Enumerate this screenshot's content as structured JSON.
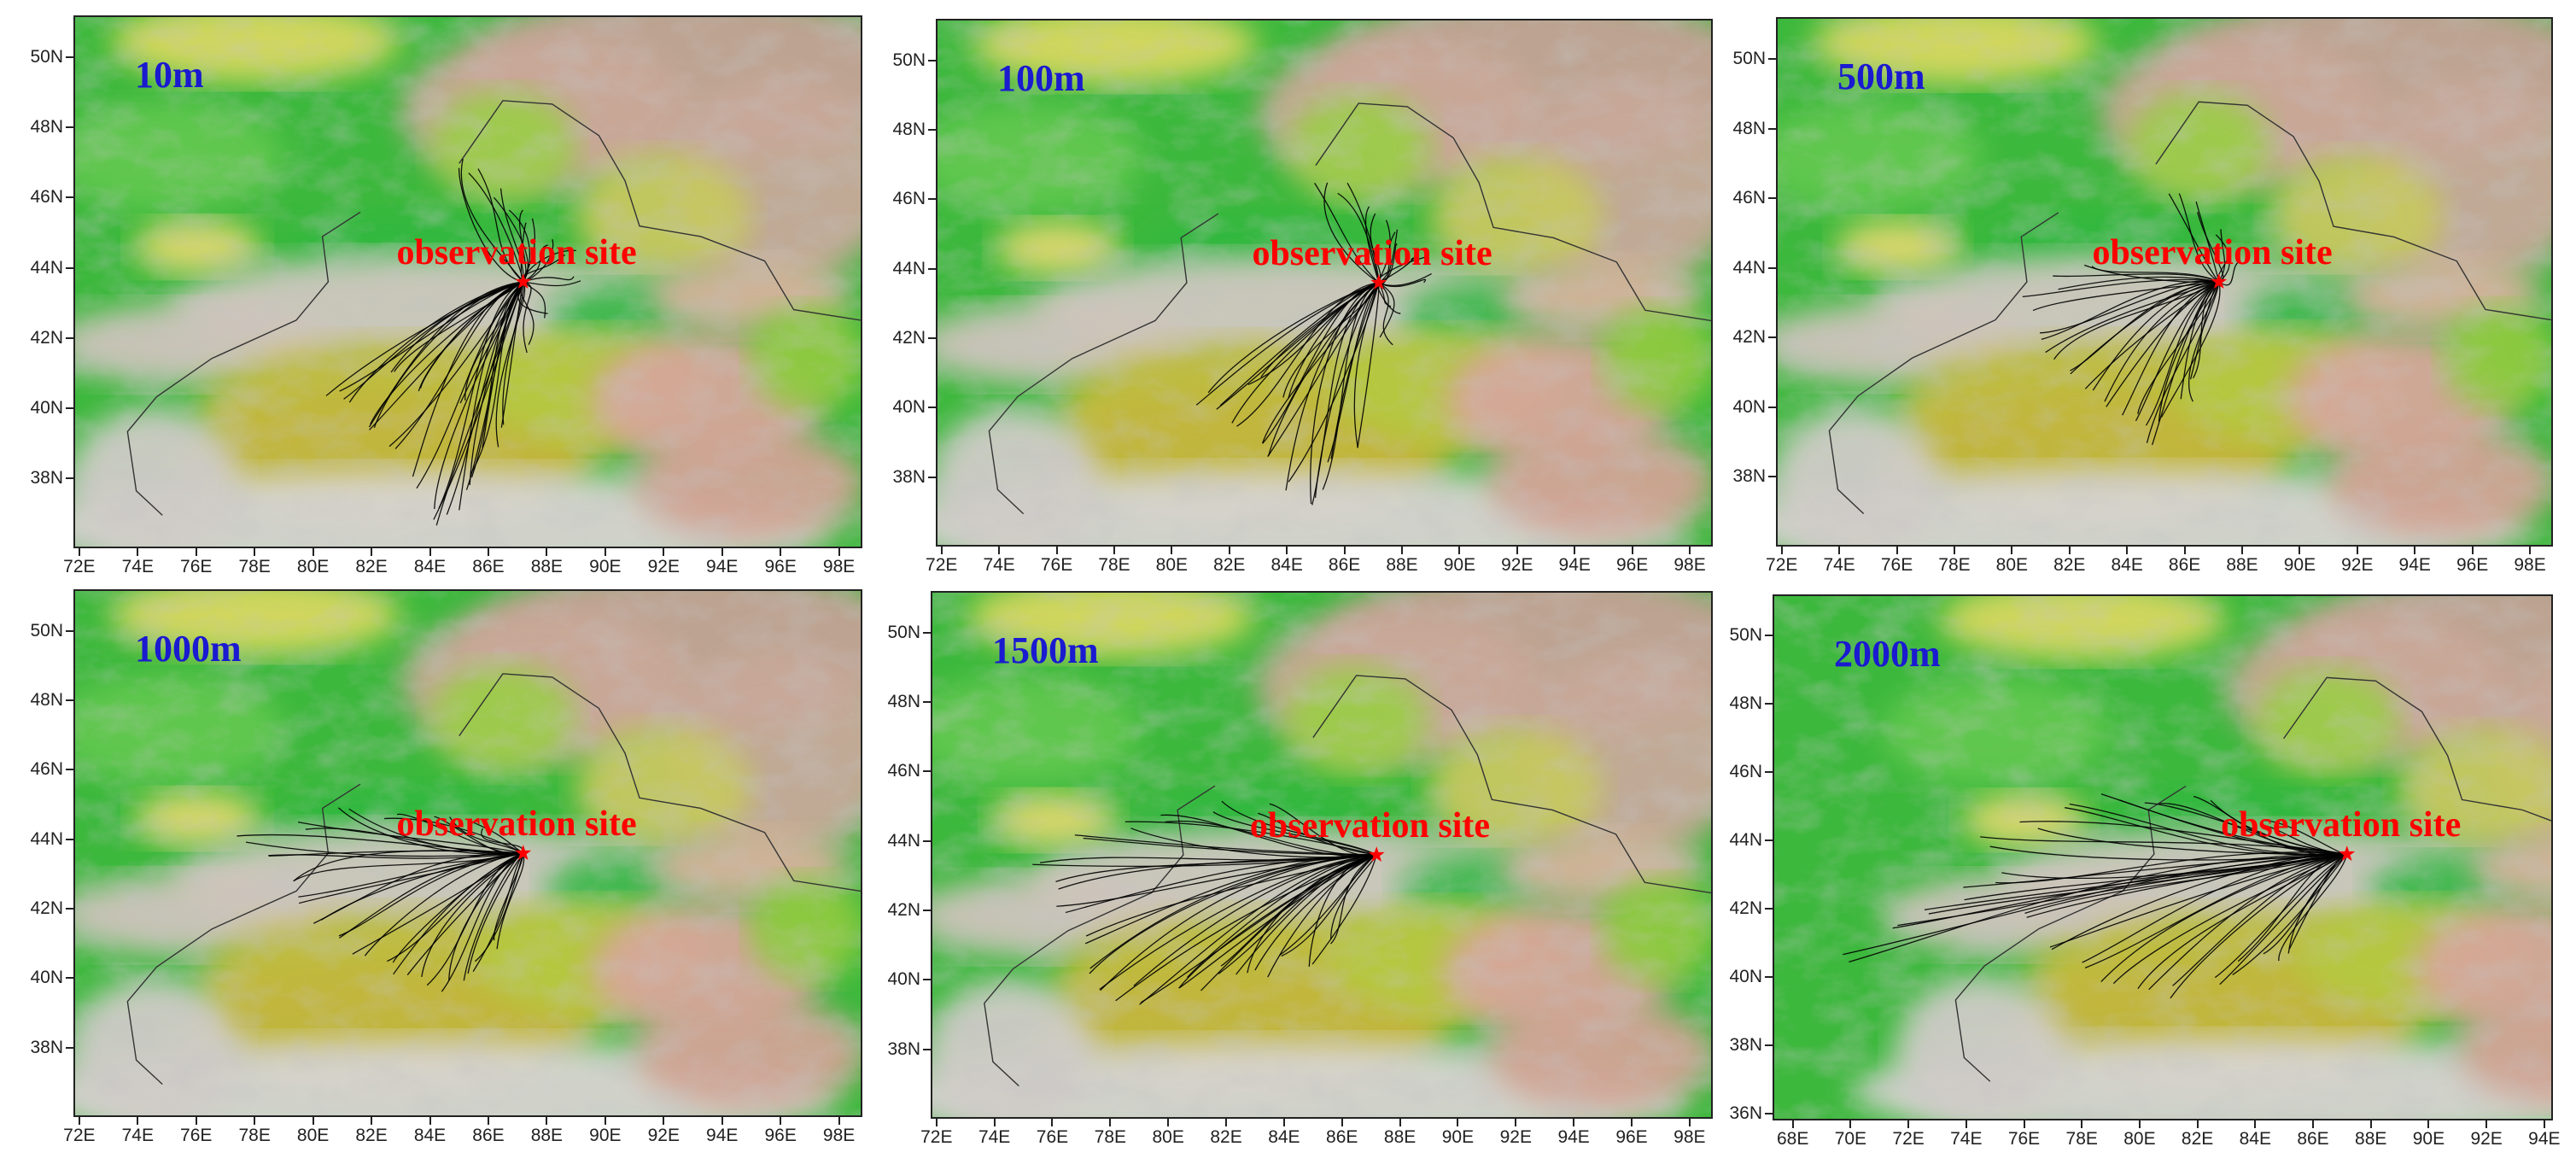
{
  "site_label": "observation site",
  "observation_site": {
    "lon": 87.2,
    "lat": 43.6
  },
  "colors": {
    "label_blue": "#1a1ad0",
    "site_red": "#ff0000",
    "trajectory": "#000000"
  },
  "panels": [
    {
      "id": "10m",
      "label": "10m",
      "lon_range": [
        71.8,
        98.8
      ],
      "lat_range": [
        36,
        51.2
      ],
      "x_ticks": [
        "72E",
        "74E",
        "76E",
        "78E",
        "80E",
        "82E",
        "84E",
        "86E",
        "88E",
        "90E",
        "92E",
        "94E",
        "96E",
        "98E"
      ],
      "y_ticks": [
        "38N",
        "40N",
        "42N",
        "44N",
        "46N",
        "48N",
        "50N"
      ],
      "trajectory_ends": [
        [
          80.6,
          40.3
        ],
        [
          81.2,
          40.0
        ],
        [
          81.8,
          39.6
        ],
        [
          82.2,
          39.2
        ],
        [
          82.9,
          38.7
        ],
        [
          83.4,
          37.9
        ],
        [
          84.0,
          37.1
        ],
        [
          84.3,
          36.7
        ],
        [
          84.9,
          37.0
        ],
        [
          85.3,
          37.6
        ],
        [
          85.6,
          38.2
        ],
        [
          86.1,
          38.8
        ],
        [
          86.6,
          39.6
        ],
        [
          85.0,
          40.0
        ],
        [
          83.7,
          40.4
        ],
        [
          82.5,
          41.2
        ],
        [
          84.8,
          46.9
        ],
        [
          85.6,
          46.7
        ],
        [
          86.5,
          46.2
        ],
        [
          87.0,
          45.6
        ],
        [
          87.6,
          45.2
        ],
        [
          88.2,
          44.9
        ],
        [
          88.7,
          44.4
        ],
        [
          88.9,
          43.7
        ],
        [
          88.0,
          42.5
        ],
        [
          87.5,
          41.8
        ]
      ]
    },
    {
      "id": "100m",
      "label": "100m",
      "lon_range": [
        71.8,
        98.8
      ],
      "lat_range": [
        36,
        51.2
      ],
      "x_ticks": [
        "72E",
        "74E",
        "76E",
        "78E",
        "80E",
        "82E",
        "84E",
        "86E",
        "88E",
        "90E",
        "92E",
        "94E",
        "96E",
        "98E"
      ],
      "y_ticks": [
        "38N",
        "40N",
        "42N",
        "44N",
        "46N",
        "48N",
        "50N"
      ],
      "trajectory_ends": [
        [
          81.0,
          40.2
        ],
        [
          81.6,
          39.8
        ],
        [
          82.3,
          39.4
        ],
        [
          82.9,
          39.0
        ],
        [
          83.4,
          38.5
        ],
        [
          84.0,
          37.8
        ],
        [
          84.5,
          37.0
        ],
        [
          85.0,
          37.6
        ],
        [
          85.6,
          38.3
        ],
        [
          86.2,
          39.0
        ],
        [
          84.2,
          40.3
        ],
        [
          83.0,
          40.8
        ],
        [
          85.1,
          46.7
        ],
        [
          86.0,
          46.3
        ],
        [
          86.7,
          45.8
        ],
        [
          87.4,
          45.3
        ],
        [
          88.1,
          44.9
        ],
        [
          88.6,
          44.3
        ],
        [
          88.9,
          43.8
        ],
        [
          88.0,
          42.7
        ],
        [
          87.4,
          41.9
        ]
      ]
    },
    {
      "id": "500m",
      "label": "500m",
      "lon_range": [
        71.8,
        98.8
      ],
      "lat_range": [
        36,
        51.2
      ],
      "x_ticks": [
        "72E",
        "74E",
        "76E",
        "78E",
        "80E",
        "82E",
        "84E",
        "86E",
        "88E",
        "90E",
        "92E",
        "94E",
        "96E",
        "98E"
      ],
      "y_ticks": [
        "38N",
        "40N",
        "42N",
        "44N",
        "46N",
        "48N",
        "50N"
      ],
      "trajectory_ends": [
        [
          80.5,
          43.0
        ],
        [
          80.9,
          42.1
        ],
        [
          81.4,
          41.4
        ],
        [
          82.0,
          40.8
        ],
        [
          82.6,
          40.5
        ],
        [
          83.3,
          40.2
        ],
        [
          84.0,
          39.9
        ],
        [
          84.5,
          39.5
        ],
        [
          84.9,
          39.1
        ],
        [
          85.4,
          39.6
        ],
        [
          86.0,
          40.1
        ],
        [
          86.5,
          40.7
        ],
        [
          81.6,
          43.6
        ],
        [
          82.5,
          43.9
        ],
        [
          85.8,
          46.2
        ],
        [
          86.6,
          45.7
        ],
        [
          87.2,
          45.1
        ],
        [
          87.7,
          44.4
        ]
      ]
    },
    {
      "id": "1000m",
      "label": "1000m",
      "lon_range": [
        71.8,
        98.8
      ],
      "lat_range": [
        36,
        51.2
      ],
      "x_ticks": [
        "72E",
        "74E",
        "76E",
        "78E",
        "80E",
        "82E",
        "84E",
        "86E",
        "88E",
        "90E",
        "92E",
        "94E",
        "96E",
        "98E"
      ],
      "y_ticks": [
        "38N",
        "40N",
        "42N",
        "44N",
        "46N",
        "48N",
        "50N"
      ],
      "trajectory_ends": [
        [
          77.5,
          44.1
        ],
        [
          78.3,
          43.6
        ],
        [
          79.0,
          43.0
        ],
        [
          79.7,
          42.3
        ],
        [
          80.3,
          41.7
        ],
        [
          81.0,
          41.1
        ],
        [
          81.7,
          40.6
        ],
        [
          82.4,
          40.3
        ],
        [
          83.1,
          40.1
        ],
        [
          83.8,
          39.9
        ],
        [
          84.5,
          39.8
        ],
        [
          85.2,
          40.0
        ],
        [
          85.8,
          40.4
        ],
        [
          86.3,
          40.9
        ],
        [
          79.8,
          44.4
        ],
        [
          81.2,
          44.7
        ],
        [
          82.8,
          44.8
        ],
        [
          84.3,
          44.6
        ],
        [
          85.6,
          44.3
        ]
      ]
    },
    {
      "id": "1500m",
      "label": "1500m",
      "lon_range": [
        71.8,
        98.8
      ],
      "lat_range": [
        36,
        51.2
      ],
      "x_ticks": [
        "72E",
        "74E",
        "76E",
        "78E",
        "80E",
        "82E",
        "84E",
        "86E",
        "88E",
        "90E",
        "92E",
        "94E",
        "96E",
        "98E"
      ],
      "y_ticks": [
        "38N",
        "40N",
        "42N",
        "44N",
        "46N",
        "48N",
        "50N"
      ],
      "trajectory_ends": [
        [
          75.4,
          43.5
        ],
        [
          75.9,
          42.8
        ],
        [
          76.3,
          42.0
        ],
        [
          76.8,
          41.2
        ],
        [
          77.3,
          40.4
        ],
        [
          77.8,
          39.9
        ],
        [
          78.5,
          39.6
        ],
        [
          79.3,
          39.5
        ],
        [
          80.1,
          39.6
        ],
        [
          81.0,
          39.9
        ],
        [
          81.8,
          40.2
        ],
        [
          82.6,
          40.0
        ],
        [
          83.3,
          40.3
        ],
        [
          84.1,
          40.5
        ],
        [
          84.8,
          40.6
        ],
        [
          85.4,
          41.0
        ],
        [
          76.8,
          44.1
        ],
        [
          78.4,
          44.5
        ],
        [
          80.0,
          44.8
        ],
        [
          81.6,
          45.0
        ],
        [
          83.2,
          44.9
        ]
      ]
    },
    {
      "id": "2000m",
      "label": "2000m",
      "lon_range": [
        67.3,
        94.3
      ],
      "lat_range": [
        35.8,
        51.2
      ],
      "x_ticks": [
        "68E",
        "70E",
        "72E",
        "74E",
        "76E",
        "78E",
        "80E",
        "82E",
        "84E",
        "86E",
        "88E",
        "90E",
        "92E",
        "94E"
      ],
      "y_ticks": [
        "36N",
        "38N",
        "40N",
        "42N",
        "44N",
        "46N",
        "48N",
        "50N"
      ],
      "trajectory_ends": [
        [
          69.8,
          40.5
        ],
        [
          71.2,
          41.3
        ],
        [
          72.6,
          41.9
        ],
        [
          73.8,
          42.5
        ],
        [
          75.0,
          42.9
        ],
        [
          76.3,
          41.8
        ],
        [
          77.2,
          40.9
        ],
        [
          78.1,
          40.4
        ],
        [
          79.0,
          40.0
        ],
        [
          80.0,
          39.7
        ],
        [
          81.2,
          39.6
        ],
        [
          82.5,
          39.8
        ],
        [
          83.6,
          40.2
        ],
        [
          84.6,
          40.5
        ],
        [
          85.5,
          40.9
        ],
        [
          74.8,
          44.0
        ],
        [
          76.2,
          44.5
        ],
        [
          77.6,
          44.9
        ],
        [
          79.0,
          45.2
        ],
        [
          80.5,
          45.3
        ],
        [
          82.2,
          45.1
        ],
        [
          84.0,
          44.7
        ]
      ]
    }
  ]
}
